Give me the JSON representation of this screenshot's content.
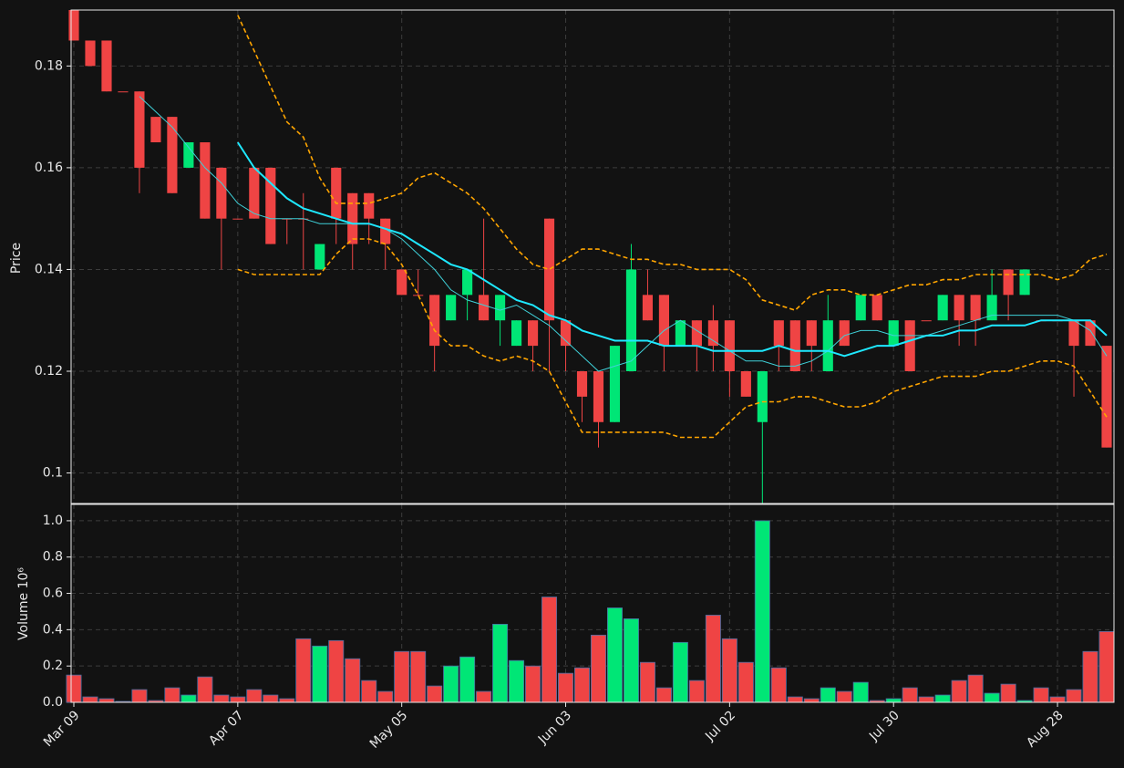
{
  "chart_data": {
    "type": "candlestick",
    "categories": [
      "Mar 09",
      null,
      null,
      null,
      null,
      null,
      null,
      null,
      null,
      null,
      "Apr 07",
      null,
      null,
      null,
      null,
      null,
      null,
      null,
      null,
      null,
      "May 05",
      null,
      null,
      null,
      null,
      null,
      null,
      null,
      null,
      null,
      "Jun 03",
      null,
      null,
      null,
      null,
      null,
      null,
      null,
      null,
      null,
      "Jul 02",
      null,
      null,
      null,
      null,
      null,
      null,
      null,
      null,
      null,
      "Jul 30",
      null,
      null,
      null,
      null,
      null,
      null,
      null,
      null,
      null,
      "Aug 28",
      null,
      null,
      null
    ],
    "open": [
      0.191,
      0.185,
      0.185,
      0.175,
      0.175,
      0.17,
      0.17,
      0.16,
      0.165,
      0.16,
      0.15,
      0.16,
      0.16,
      0.15,
      0.15,
      0.14,
      0.16,
      0.155,
      0.155,
      0.15,
      0.14,
      0.135,
      0.135,
      0.13,
      0.135,
      0.135,
      0.13,
      0.125,
      0.13,
      0.15,
      0.13,
      0.12,
      0.12,
      0.11,
      0.12,
      0.135,
      0.135,
      0.125,
      0.13,
      0.13,
      0.13,
      0.12,
      0.11,
      0.13,
      0.13,
      0.13,
      0.12,
      0.13,
      0.13,
      0.135,
      0.125,
      0.13,
      0.13,
      0.13,
      0.135,
      0.135,
      0.13,
      0.14,
      0.135,
      0.13,
      0.13,
      0.13,
      0.13,
      0.125
    ],
    "high": [
      0.191,
      0.185,
      0.185,
      0.175,
      0.175,
      0.17,
      0.17,
      0.165,
      0.165,
      0.16,
      0.15,
      0.16,
      0.16,
      0.15,
      0.155,
      0.145,
      0.16,
      0.155,
      0.155,
      0.15,
      0.14,
      0.14,
      0.135,
      0.135,
      0.14,
      0.15,
      0.135,
      0.13,
      0.13,
      0.15,
      0.13,
      0.12,
      0.12,
      0.125,
      0.145,
      0.14,
      0.135,
      0.13,
      0.13,
      0.133,
      0.13,
      0.12,
      0.12,
      0.13,
      0.13,
      0.13,
      0.135,
      0.13,
      0.135,
      0.135,
      0.13,
      0.13,
      0.13,
      0.135,
      0.135,
      0.135,
      0.14,
      0.14,
      0.14,
      0.13,
      0.13,
      0.13,
      0.13,
      0.125
    ],
    "low": [
      0.185,
      0.18,
      0.175,
      0.175,
      0.155,
      0.165,
      0.155,
      0.16,
      0.15,
      0.14,
      0.15,
      0.15,
      0.145,
      0.145,
      0.14,
      0.14,
      0.145,
      0.14,
      0.145,
      0.14,
      0.135,
      0.135,
      0.12,
      0.13,
      0.13,
      0.13,
      0.125,
      0.125,
      0.12,
      0.12,
      0.12,
      0.11,
      0.105,
      0.11,
      0.12,
      0.13,
      0.12,
      0.125,
      0.12,
      0.12,
      0.115,
      0.115,
      0.094,
      0.12,
      0.12,
      0.12,
      0.12,
      0.125,
      0.13,
      0.13,
      0.125,
      0.12,
      0.13,
      0.13,
      0.125,
      0.125,
      0.13,
      0.13,
      0.135,
      0.13,
      0.13,
      0.115,
      0.125,
      0.105
    ],
    "close": [
      0.185,
      0.18,
      0.175,
      0.175,
      0.16,
      0.165,
      0.155,
      0.165,
      0.15,
      0.15,
      0.15,
      0.15,
      0.145,
      0.15,
      0.15,
      0.145,
      0.15,
      0.145,
      0.15,
      0.145,
      0.135,
      0.135,
      0.125,
      0.135,
      0.14,
      0.13,
      0.135,
      0.13,
      0.125,
      0.13,
      0.125,
      0.115,
      0.11,
      0.125,
      0.14,
      0.13,
      0.125,
      0.13,
      0.125,
      0.125,
      0.12,
      0.115,
      0.12,
      0.125,
      0.12,
      0.125,
      0.13,
      0.125,
      0.135,
      0.13,
      0.13,
      0.12,
      0.13,
      0.135,
      0.13,
      0.13,
      0.135,
      0.135,
      0.14,
      0.13,
      0.13,
      0.125,
      0.125,
      0.105
    ],
    "volume": [
      0.15,
      0.03,
      0.02,
      0.005,
      0.07,
      0.01,
      0.08,
      0.04,
      0.14,
      0.04,
      0.03,
      0.07,
      0.04,
      0.02,
      0.35,
      0.31,
      0.34,
      0.24,
      0.12,
      0.06,
      0.28,
      0.28,
      0.09,
      0.2,
      0.25,
      0.06,
      0.43,
      0.23,
      0.2,
      0.58,
      0.16,
      0.19,
      0.37,
      0.52,
      0.46,
      0.22,
      0.08,
      0.33,
      0.12,
      0.48,
      0.35,
      0.22,
      1.0,
      0.19,
      0.03,
      0.02,
      0.08,
      0.06,
      0.11,
      0.01,
      0.02,
      0.08,
      0.03,
      0.04,
      0.12,
      0.15,
      0.05,
      0.1,
      0.01,
      0.08,
      0.03,
      0.07,
      0.28,
      0.39
    ],
    "up_color": "#00e676",
    "down_color": "#ef4444",
    "lines": [
      {
        "color": "#3fd0d8",
        "dashed": false,
        "values": [
          null,
          null,
          null,
          null,
          0.174,
          0.171,
          0.168,
          0.164,
          0.16,
          0.157,
          0.153,
          0.151,
          0.15,
          0.15,
          0.15,
          0.149,
          0.149,
          0.149,
          0.149,
          0.148,
          0.146,
          0.143,
          0.14,
          0.136,
          0.134,
          0.133,
          0.132,
          0.133,
          0.131,
          0.129,
          0.126,
          0.123,
          0.12,
          0.121,
          0.122,
          0.125,
          0.128,
          0.13,
          0.128,
          0.126,
          0.124,
          0.122,
          0.122,
          0.121,
          0.121,
          0.122,
          0.124,
          0.127,
          0.128,
          0.128,
          0.127,
          0.127,
          0.127,
          0.128,
          0.129,
          0.13,
          0.131,
          0.131,
          0.131,
          0.131,
          0.131,
          0.13,
          0.128,
          0.123
        ]
      },
      {
        "color": "#1ee8ff",
        "dashed": false,
        "values": [
          null,
          null,
          null,
          null,
          null,
          null,
          null,
          null,
          null,
          null,
          0.165,
          0.16,
          0.157,
          0.154,
          0.152,
          0.151,
          0.15,
          0.149,
          0.149,
          0.148,
          0.147,
          0.145,
          0.143,
          0.141,
          0.14,
          0.138,
          0.136,
          0.134,
          0.133,
          0.131,
          0.13,
          0.128,
          0.127,
          0.126,
          0.126,
          0.126,
          0.125,
          0.125,
          0.125,
          0.124,
          0.124,
          0.124,
          0.124,
          0.125,
          0.124,
          0.124,
          0.124,
          0.123,
          0.124,
          0.125,
          0.125,
          0.126,
          0.127,
          0.127,
          0.128,
          0.128,
          0.129,
          0.129,
          0.129,
          0.13,
          0.13,
          0.13,
          0.13,
          0.127
        ]
      },
      {
        "color": "#ffa500",
        "dashed": true,
        "values": [
          null,
          null,
          null,
          null,
          null,
          null,
          null,
          null,
          null,
          null,
          0.19,
          0.183,
          0.176,
          0.169,
          0.166,
          0.158,
          0.153,
          0.153,
          0.153,
          0.154,
          0.155,
          0.158,
          0.159,
          0.157,
          0.155,
          0.152,
          0.148,
          0.144,
          0.141,
          0.14,
          0.142,
          0.144,
          0.144,
          0.143,
          0.142,
          0.142,
          0.141,
          0.141,
          0.14,
          0.14,
          0.14,
          0.138,
          0.134,
          0.133,
          0.132,
          0.135,
          0.136,
          0.136,
          0.135,
          0.135,
          0.136,
          0.137,
          0.137,
          0.138,
          0.138,
          0.139,
          0.139,
          0.139,
          0.139,
          0.139,
          0.138,
          0.139,
          0.142,
          0.143
        ]
      },
      {
        "color": "#ffa500",
        "dashed": true,
        "values": [
          null,
          null,
          null,
          null,
          null,
          null,
          null,
          null,
          null,
          null,
          0.14,
          0.139,
          0.139,
          0.139,
          0.139,
          0.139,
          0.143,
          0.146,
          0.146,
          0.145,
          0.141,
          0.135,
          0.128,
          0.125,
          0.125,
          0.123,
          0.122,
          0.123,
          0.122,
          0.12,
          0.114,
          0.108,
          0.108,
          0.108,
          0.108,
          0.108,
          0.108,
          0.107,
          0.107,
          0.107,
          0.11,
          0.113,
          0.114,
          0.114,
          0.115,
          0.115,
          0.114,
          0.113,
          0.113,
          0.114,
          0.116,
          0.117,
          0.118,
          0.119,
          0.119,
          0.119,
          0.12,
          0.12,
          0.121,
          0.122,
          0.122,
          0.121,
          0.116,
          0.111
        ]
      }
    ],
    "ylabel": "Price",
    "ylim": [
      0.094,
      0.191
    ],
    "yticks": [
      0.1,
      0.12,
      0.14,
      0.16,
      0.18
    ],
    "y2label": "Volume  10⁶",
    "y2lim": [
      0,
      1.09
    ],
    "y2ticks": [
      {
        "value": 0,
        "label": "0.0"
      },
      0.2,
      0.4,
      0.6,
      0.8,
      {
        "value": 1,
        "label": "1.0"
      }
    ],
    "grid": true
  }
}
